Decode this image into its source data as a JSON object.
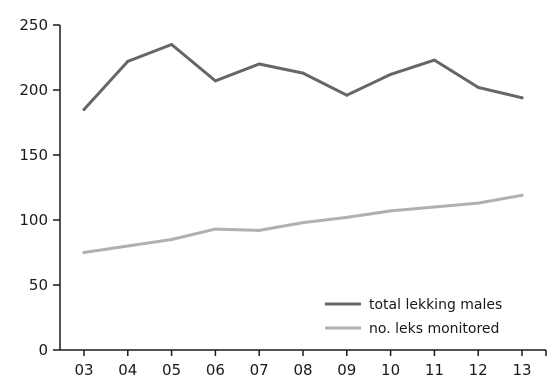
{
  "chart_data": {
    "type": "line",
    "title": "",
    "xlabel": "",
    "ylabel": "",
    "categories": [
      "03",
      "04",
      "05",
      "06",
      "07",
      "08",
      "09",
      "10",
      "11",
      "12",
      "13"
    ],
    "ylim": [
      0,
      250
    ],
    "yticks": [
      0,
      50,
      100,
      150,
      200,
      250
    ],
    "grid": false,
    "legend_position": "bottom-right",
    "series": [
      {
        "name": "total lekking males",
        "color": "#666666",
        "values": [
          185,
          222,
          235,
          207,
          220,
          213,
          196,
          212,
          223,
          202,
          194
        ]
      },
      {
        "name": "no. leks monitored",
        "color": "#b0b0b0",
        "values": [
          75,
          80,
          85,
          93,
          92,
          98,
          102,
          107,
          110,
          113,
          119
        ]
      }
    ]
  }
}
